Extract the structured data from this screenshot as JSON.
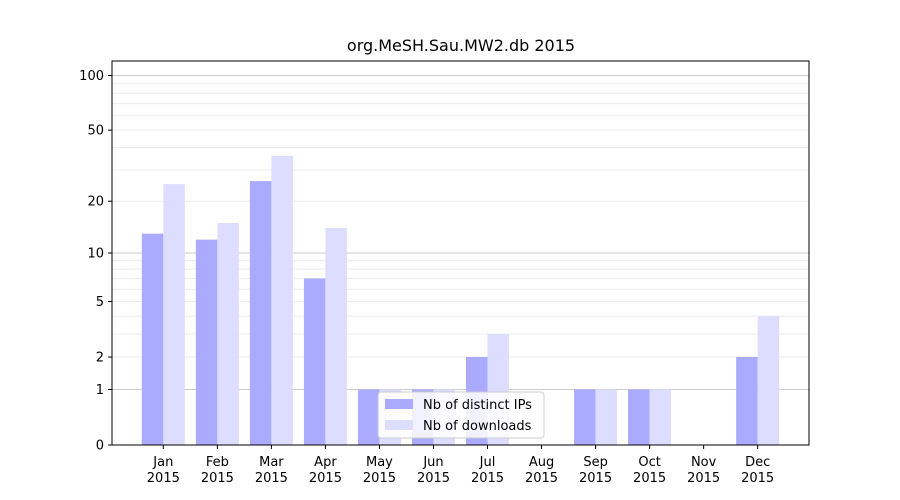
{
  "chart_data": {
    "type": "bar",
    "title": "org.MeSH.Sau.MW2.db 2015",
    "xlabel": "",
    "ylabel": "",
    "categories": [
      "Jan\n2015",
      "Feb\n2015",
      "Mar\n2015",
      "Apr\n2015",
      "May\n2015",
      "Jun\n2015",
      "Jul\n2015",
      "Aug\n2015",
      "Sep\n2015",
      "Oct\n2015",
      "Nov\n2015",
      "Dec\n2015"
    ],
    "y_scale": "log(1+y)",
    "ylim": [
      0,
      120
    ],
    "yticks": [
      0,
      1,
      2,
      5,
      10,
      20,
      50,
      100
    ],
    "grid": true,
    "legend_position": "bottom-center",
    "series": [
      {
        "name": "Nb of distinct IPs",
        "color": "#aaaaff",
        "values": [
          13,
          12,
          26,
          7,
          1,
          1,
          2,
          0,
          1,
          1,
          0,
          2
        ]
      },
      {
        "name": "Nb of downloads",
        "color": "#ddddff",
        "values": [
          25,
          15,
          36,
          14,
          1,
          1,
          3,
          0,
          1,
          1,
          0,
          4
        ]
      }
    ]
  }
}
